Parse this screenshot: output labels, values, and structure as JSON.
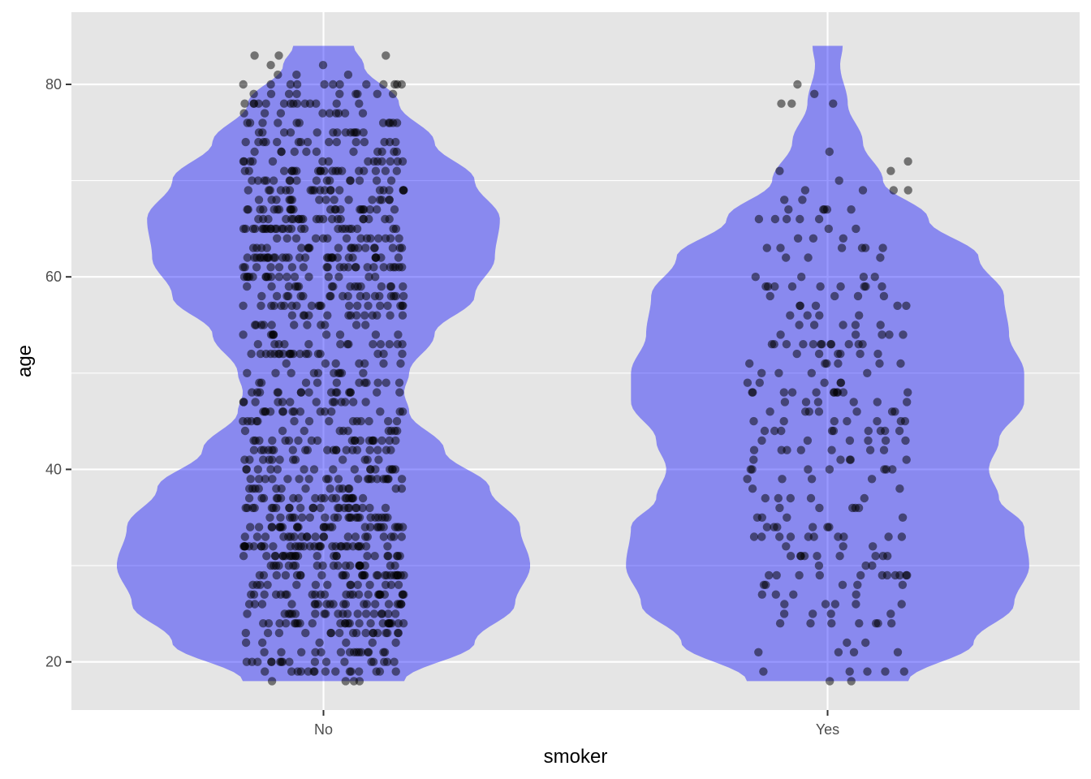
{
  "chart_data": {
    "type": "violin",
    "title": "",
    "xlabel": "smoker",
    "ylabel": "age",
    "categories": [
      "No",
      "Yes"
    ],
    "ylim": [
      15,
      87.5
    ],
    "y_ticks": [
      20,
      40,
      60,
      80
    ],
    "y_tick_labels": [
      "20",
      "40",
      "60",
      "80"
    ],
    "grid": true,
    "legend": "none",
    "overlay": "jittered points",
    "colors": {
      "panel": "#E5E5E5",
      "grid": "#FFFFFF",
      "violin_fill": "#0000FF",
      "violin_alpha": 0.4,
      "point": "#000000",
      "point_alpha": 0.5
    },
    "series": [
      {
        "category": "No",
        "n_points": 1064,
        "age_range": [
          18,
          84
        ],
        "density_profile": [
          {
            "age": 18,
            "halfwidth": 0.16
          },
          {
            "age": 22,
            "halfwidth": 0.3
          },
          {
            "age": 26,
            "halfwidth": 0.38
          },
          {
            "age": 30,
            "halfwidth": 0.41
          },
          {
            "age": 34,
            "halfwidth": 0.39
          },
          {
            "age": 38,
            "halfwidth": 0.33
          },
          {
            "age": 42,
            "halfwidth": 0.24
          },
          {
            "age": 46,
            "halfwidth": 0.17
          },
          {
            "age": 48,
            "halfwidth": 0.16
          },
          {
            "age": 50,
            "halfwidth": 0.17
          },
          {
            "age": 54,
            "halfwidth": 0.22
          },
          {
            "age": 58,
            "halfwidth": 0.3
          },
          {
            "age": 62,
            "halfwidth": 0.34
          },
          {
            "age": 66,
            "halfwidth": 0.35
          },
          {
            "age": 70,
            "halfwidth": 0.3
          },
          {
            "age": 74,
            "halfwidth": 0.22
          },
          {
            "age": 78,
            "halfwidth": 0.15
          },
          {
            "age": 82,
            "halfwidth": 0.08
          },
          {
            "age": 84,
            "halfwidth": 0.06
          }
        ]
      },
      {
        "category": "Yes",
        "n_points": 274,
        "age_range": [
          18,
          84
        ],
        "density_profile": [
          {
            "age": 18,
            "halfwidth": 0.16
          },
          {
            "age": 22,
            "halfwidth": 0.29
          },
          {
            "age": 26,
            "halfwidth": 0.37
          },
          {
            "age": 30,
            "halfwidth": 0.4
          },
          {
            "age": 34,
            "halfwidth": 0.39
          },
          {
            "age": 37,
            "halfwidth": 0.34
          },
          {
            "age": 40,
            "halfwidth": 0.32
          },
          {
            "age": 43,
            "halfwidth": 0.34
          },
          {
            "age": 47,
            "halfwidth": 0.39
          },
          {
            "age": 50,
            "halfwidth": 0.39
          },
          {
            "age": 54,
            "halfwidth": 0.36
          },
          {
            "age": 58,
            "halfwidth": 0.35
          },
          {
            "age": 62,
            "halfwidth": 0.3
          },
          {
            "age": 66,
            "halfwidth": 0.2
          },
          {
            "age": 70,
            "halfwidth": 0.11
          },
          {
            "age": 74,
            "halfwidth": 0.07
          },
          {
            "age": 78,
            "halfwidth": 0.04
          },
          {
            "age": 82,
            "halfwidth": 0.025
          },
          {
            "age": 84,
            "halfwidth": 0.03
          }
        ]
      }
    ]
  }
}
